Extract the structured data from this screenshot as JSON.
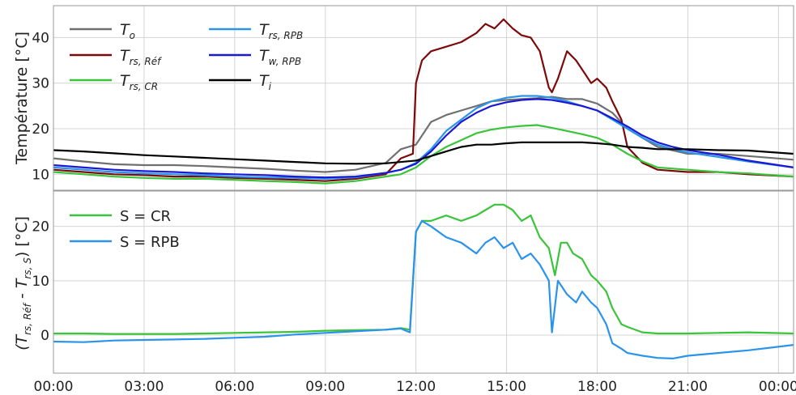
{
  "chart_data": [
    {
      "type": "line",
      "ylabel": "Température [°C]",
      "xlim": [
        0,
        24.5
      ],
      "ylim": [
        6.5,
        47
      ],
      "yticks": [
        10,
        20,
        30,
        40
      ],
      "grid": true,
      "legend_position": "top-left",
      "series": [
        {
          "name": "T_o",
          "color": "#707070",
          "x": [
            0,
            1,
            2,
            3,
            4,
            5,
            6,
            7,
            8,
            9,
            10,
            11,
            11.5,
            12,
            12.5,
            13,
            13.5,
            14,
            14.5,
            15,
            15.5,
            16,
            16.5,
            17,
            17.5,
            18,
            18.5,
            19,
            20,
            21,
            22,
            23,
            24.5
          ],
          "y": [
            13.5,
            12.8,
            12.2,
            12.0,
            12.0,
            11.8,
            11.5,
            11.2,
            10.8,
            10.5,
            11.0,
            12.5,
            15.5,
            16.5,
            21.5,
            23,
            24,
            25,
            26,
            26.3,
            26.5,
            26.7,
            27,
            26.5,
            26.5,
            25.5,
            23.5,
            20,
            16,
            14.5,
            14.5,
            14,
            13.2
          ]
        },
        {
          "name": "T_rs,Réf",
          "color": "#7d0a0a",
          "x": [
            0,
            1,
            2,
            3,
            4,
            5,
            6,
            7,
            8,
            9,
            10,
            11,
            11.5,
            11.9,
            12,
            12.2,
            12.5,
            13,
            13.5,
            14,
            14.3,
            14.6,
            14.9,
            15.2,
            15.5,
            15.8,
            16.1,
            16.4,
            16.5,
            16.7,
            17,
            17.3,
            17.6,
            17.8,
            18,
            18.3,
            18.5,
            18.8,
            19,
            19.5,
            20,
            21,
            22,
            23,
            24.5
          ],
          "y": [
            11,
            10.5,
            10,
            9.8,
            9.5,
            9.5,
            9.2,
            9.0,
            8.8,
            8.5,
            9.0,
            10.0,
            13.5,
            14.5,
            30,
            35,
            37,
            38,
            39,
            41,
            43,
            42,
            44,
            42,
            40.5,
            40,
            37,
            29,
            28,
            31,
            37,
            35,
            32,
            30,
            31,
            29,
            26,
            22,
            16,
            12.5,
            11,
            10.5,
            10.5,
            10,
            9.5
          ]
        },
        {
          "name": "T_rs,CR",
          "color": "#3ac43a",
          "x": [
            0,
            1,
            2,
            3,
            4,
            5,
            6,
            7,
            8,
            9,
            10,
            11,
            11.5,
            12,
            12.5,
            13,
            13.5,
            14,
            14.5,
            15,
            15.5,
            16,
            16.5,
            17,
            17.5,
            18,
            18.5,
            19,
            19.5,
            20,
            21,
            22,
            23,
            24.5
          ],
          "y": [
            10.5,
            10,
            9.5,
            9.2,
            9.0,
            9.0,
            8.8,
            8.5,
            8.3,
            8.0,
            8.5,
            9.5,
            10,
            11.5,
            14,
            16,
            17.5,
            19,
            19.8,
            20.3,
            20.6,
            20.8,
            20.2,
            19.5,
            18.8,
            18,
            16.5,
            14.5,
            12.8,
            11.5,
            11,
            10.5,
            10.2,
            9.5
          ]
        },
        {
          "name": "T_rs,RPB",
          "color": "#2a93ec",
          "x": [
            0,
            1,
            2,
            3,
            4,
            5,
            6,
            7,
            8,
            9,
            10,
            11,
            11.5,
            12,
            12.5,
            13,
            13.5,
            14,
            14.5,
            15,
            15.5,
            16,
            16.5,
            17,
            17.5,
            18,
            18.5,
            19,
            19.5,
            20,
            20.5,
            21,
            22,
            23,
            24.5
          ],
          "y": [
            11.5,
            11,
            10.5,
            10.2,
            10,
            9.8,
            9.5,
            9.3,
            9.2,
            9.0,
            9.3,
            10.3,
            11,
            12.5,
            15.5,
            19.5,
            22,
            24.5,
            26,
            26.8,
            27.2,
            27.2,
            26.8,
            26,
            25,
            24,
            22,
            20,
            18,
            16.5,
            15.5,
            14.8,
            13.8,
            12.8,
            11.5
          ]
        },
        {
          "name": "T_w,RPB",
          "color": "#1a1ad4",
          "x": [
            0,
            1,
            2,
            3,
            4,
            5,
            6,
            7,
            8,
            9,
            10,
            11,
            11.5,
            12,
            12.5,
            13,
            13.5,
            14,
            14.5,
            15,
            15.5,
            16,
            16.5,
            17,
            17.5,
            18,
            18.5,
            19,
            19.5,
            20,
            20.5,
            21,
            22,
            23,
            24.5
          ],
          "y": [
            12,
            11.5,
            11,
            10.7,
            10.5,
            10.2,
            10,
            9.8,
            9.5,
            9.3,
            9.5,
            10.3,
            11,
            12.3,
            15,
            18.5,
            21.5,
            23.5,
            25,
            25.8,
            26.3,
            26.5,
            26.3,
            25.7,
            25,
            24,
            22.3,
            20.5,
            18.5,
            17,
            16,
            15.3,
            14.3,
            13,
            11.5
          ]
        },
        {
          "name": "T_i",
          "color": "#000000",
          "x": [
            0,
            1,
            2,
            3,
            4,
            5,
            6,
            7,
            8,
            9,
            10,
            11,
            12,
            12.5,
            13,
            13.5,
            14,
            14.5,
            15,
            15.5,
            16,
            16.5,
            17,
            17.5,
            18,
            18.5,
            19,
            19.5,
            20,
            20.5,
            21,
            22,
            23,
            24.5
          ],
          "y": [
            15.3,
            15.0,
            14.6,
            14.2,
            13.9,
            13.6,
            13.3,
            13.0,
            12.7,
            12.4,
            12.3,
            12.4,
            13,
            14,
            15,
            16,
            16.5,
            16.5,
            16.8,
            17,
            17,
            17,
            17,
            17,
            16.8,
            16.5,
            16,
            15.8,
            15.5,
            15.5,
            15.5,
            15.3,
            15.2,
            14.5
          ]
        }
      ]
    },
    {
      "type": "line",
      "ylabel": "(T_rs,Réf - T_rs,S) [°C]",
      "xlim": [
        0,
        24.5
      ],
      "ylim": [
        -7,
        26.5
      ],
      "yticks": [
        0,
        10,
        20
      ],
      "grid": true,
      "legend_position": "top-left",
      "series": [
        {
          "name": "S = CR",
          "color": "#3ac43a",
          "x": [
            0,
            1,
            2,
            3,
            4,
            5,
            6,
            7,
            8,
            9,
            10,
            11,
            11.5,
            11.8,
            12,
            12.2,
            12.5,
            13,
            13.5,
            14,
            14.3,
            14.6,
            14.9,
            15.2,
            15.5,
            15.8,
            16.1,
            16.4,
            16.6,
            16.8,
            17,
            17.2,
            17.5,
            17.8,
            18,
            18.3,
            18.5,
            18.8,
            19,
            19.5,
            20,
            21,
            22,
            23,
            24.5
          ],
          "y": [
            0.3,
            0.3,
            0.2,
            0.2,
            0.2,
            0.3,
            0.4,
            0.5,
            0.6,
            0.8,
            0.9,
            1.0,
            1.3,
            1.0,
            19,
            21,
            21,
            22,
            21,
            22,
            23,
            24,
            24,
            23,
            21,
            22,
            18,
            16,
            11,
            17,
            17,
            15,
            14,
            11,
            10,
            8,
            5,
            2,
            1.5,
            0.5,
            0.3,
            0.3,
            0.4,
            0.5,
            0.3
          ]
        },
        {
          "name": "S = RPB",
          "color": "#2a93ec",
          "x": [
            0,
            1,
            2,
            3,
            4,
            5,
            6,
            7,
            8,
            9,
            10,
            11,
            11.5,
            11.8,
            12,
            12.2,
            12.5,
            13,
            13.5,
            14,
            14.3,
            14.6,
            14.9,
            15.2,
            15.5,
            15.8,
            16.1,
            16.4,
            16.5,
            16.7,
            17,
            17.3,
            17.5,
            17.8,
            18,
            18.3,
            18.5,
            18.8,
            19,
            19.5,
            20,
            20.5,
            21,
            22,
            23,
            24.5
          ],
          "y": [
            -1.2,
            -1.3,
            -1.0,
            -0.9,
            -0.8,
            -0.7,
            -0.5,
            -0.3,
            0.1,
            0.4,
            0.7,
            1.0,
            1.2,
            0.5,
            19,
            21,
            20,
            18,
            17,
            15,
            17,
            18,
            16,
            17,
            14,
            15,
            13,
            10,
            0.5,
            10,
            7.5,
            6,
            8,
            6,
            5,
            2,
            -1.5,
            -2.5,
            -3.3,
            -3.8,
            -4.2,
            -4.3,
            -3.8,
            -3.3,
            -2.8,
            -1.8
          ]
        }
      ]
    }
  ],
  "xticks": [
    "00:00",
    "03:00",
    "06:00",
    "09:00",
    "12:00",
    "15:00",
    "18:00",
    "21:00",
    "00:00"
  ],
  "legend_top": {
    "items": [
      {
        "base": "T",
        "sub": "o"
      },
      {
        "base": "T",
        "sub": "rs, Réf"
      },
      {
        "base": "T",
        "sub": "rs, CR"
      },
      {
        "base": "T",
        "sub": "rs, RPB"
      },
      {
        "base": "T",
        "sub": "w, RPB"
      },
      {
        "base": "T",
        "sub": "i"
      }
    ]
  },
  "legend_bottom": {
    "items": [
      "S = CR",
      "S = RPB"
    ]
  },
  "ylabel_bottom_parts": {
    "open": "(T",
    "sub1": "rs, Réf",
    "mid": " - T",
    "sub2": "rs, S",
    "close": ") [°C]"
  }
}
